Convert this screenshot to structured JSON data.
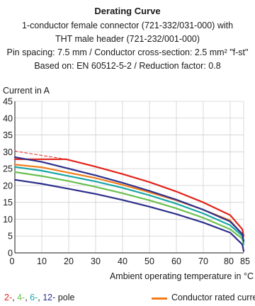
{
  "header": {
    "title": "Derating Curve",
    "line1": "1-conductor female connector (721-332/031-000) with",
    "line2": "THT male header (721-232/001-000)",
    "line3": "Pin spacing: 7.5 mm / Conductor cross-section: 2.5 mm² \"f-st\"",
    "line4": "Based on: EN 60512-5-2 / Reduction factor: 0.8"
  },
  "legend": {
    "poles": [
      {
        "text": "2-",
        "color": "#e2231a"
      },
      {
        "text": ", ",
        "color": "#1a1a1a"
      },
      {
        "text": "4-",
        "color": "#6bbf4e"
      },
      {
        "text": ", ",
        "color": "#1a1a1a"
      },
      {
        "text": "6-",
        "color": "#1aa6a6"
      },
      {
        "text": ", ",
        "color": "#1a1a1a"
      },
      {
        "text": "12-",
        "color": "#2d2f8c"
      },
      {
        "text": " pole",
        "color": "#1a1a1a"
      }
    ],
    "rated_label": "Conductor rated current",
    "rated_color": "#f27c1b"
  },
  "chart_data": {
    "type": "line",
    "ylabel": "Current in A",
    "xlabel": "Ambient operating temperature in °C",
    "xlim": [
      0,
      85
    ],
    "ylim": [
      0,
      45
    ],
    "xticks": [
      10,
      20,
      30,
      40,
      50,
      60,
      70,
      80,
      85
    ],
    "yticks": [
      0,
      5,
      10,
      15,
      20,
      25,
      30,
      35,
      40,
      45
    ],
    "grid": true,
    "series": [
      {
        "name": "Conductor rated current",
        "color": "#f27c1b",
        "width": 2.2,
        "x": [
          0,
          10,
          20,
          30,
          40,
          50,
          60,
          70,
          80,
          85
        ],
        "y": [
          26.2,
          25.4,
          23.8,
          22.2,
          20.2,
          18.0,
          15.6,
          12.8,
          9.6,
          5.0
        ]
      },
      {
        "name": "2-",
        "color": "#e2231a",
        "width": 2.2,
        "x": [
          0,
          19,
          30,
          40,
          50,
          60,
          70,
          80,
          84.5,
          85
        ],
        "y": [
          27.8,
          27.8,
          25.6,
          23.4,
          21.0,
          18.2,
          15.0,
          11.2,
          7.0,
          5.0
        ]
      },
      {
        "name": "2- dashed",
        "color": "#e2231a",
        "width": 1.0,
        "dash": "4,3",
        "x": [
          0,
          19
        ],
        "y": [
          30.2,
          27.8
        ]
      },
      {
        "name": "4-",
        "color": "#6bbf4e",
        "width": 2.2,
        "x": [
          0,
          10,
          20,
          30,
          40,
          50,
          60,
          70,
          80,
          84.5,
          85
        ],
        "y": [
          24.0,
          22.8,
          21.3,
          19.6,
          17.7,
          15.6,
          13.2,
          10.4,
          7.0,
          4.2,
          2.5
        ]
      },
      {
        "name": "6-",
        "color": "#1aa6a6",
        "width": 2.2,
        "x": [
          0,
          10,
          20,
          30,
          40,
          50,
          60,
          70,
          80,
          84.5,
          85
        ],
        "y": [
          25.5,
          24.4,
          22.8,
          21.2,
          19.3,
          17.1,
          14.6,
          11.7,
          8.2,
          5.0,
          3.0
        ]
      },
      {
        "name": "12-",
        "color": "#2d2f8c",
        "width": 2.2,
        "x": [
          0,
          10,
          20,
          30,
          40,
          50,
          60,
          70,
          80,
          84.5,
          85
        ],
        "y": [
          21.7,
          20.5,
          19.0,
          17.5,
          15.7,
          13.7,
          11.5,
          9.0,
          6.0,
          2.5,
          0.5
        ]
      },
      {
        "name": "12- upper",
        "color": "#2d2f8c",
        "width": 2.2,
        "x": [
          0,
          10,
          20,
          30,
          40,
          50,
          60,
          70,
          80,
          84.5,
          85
        ],
        "y": [
          28.4,
          27.0,
          25.0,
          23.0,
          20.8,
          18.4,
          15.8,
          12.8,
          9.3,
          5.6,
          3.5
        ]
      }
    ]
  }
}
